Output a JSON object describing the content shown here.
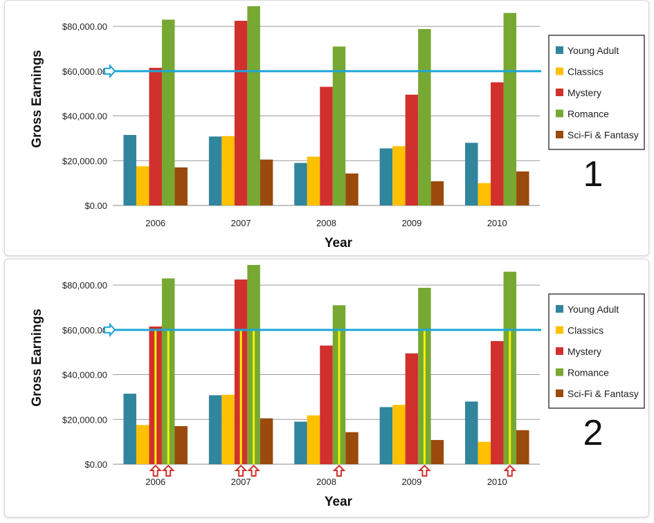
{
  "chart_data": [
    {
      "type": "bar",
      "panel_label": "1",
      "categories": [
        "2006",
        "2007",
        "2008",
        "2009",
        "2010"
      ],
      "series": [
        {
          "name": "Young Adult",
          "color": "#31859c",
          "values": [
            31500,
            30800,
            19000,
            25500,
            28000
          ]
        },
        {
          "name": "Classics",
          "color": "#ffc000",
          "values": [
            17500,
            31000,
            21800,
            26500,
            10000
          ]
        },
        {
          "name": "Mystery",
          "color": "#d0312d",
          "values": [
            61500,
            82500,
            53000,
            49500,
            55000
          ]
        },
        {
          "name": "Romance",
          "color": "#77a832",
          "values": [
            83000,
            89000,
            71000,
            78800,
            86000
          ]
        },
        {
          "name": "Sci-Fi & Fantasy",
          "color": "#9b4a0d",
          "values": [
            17000,
            20500,
            14300,
            10800,
            15200
          ]
        }
      ],
      "xlabel": "Year",
      "ylabel": "Gross Earnings",
      "ylim": [
        0,
        89000
      ],
      "yticks": [
        "$0.00",
        "$20,000.00",
        "$40,000.00",
        "$60,000.00",
        "$80,000.00"
      ],
      "ytick_values": [
        0,
        20000,
        40000,
        60000,
        80000
      ],
      "reference_line": {
        "value": 60000,
        "color": "#1da6d8"
      },
      "legend_position": "right",
      "grid": true
    },
    {
      "type": "bar",
      "panel_label": "2",
      "categories": [
        "2006",
        "2007",
        "2008",
        "2009",
        "2010"
      ],
      "series": [
        {
          "name": "Young Adult",
          "color": "#31859c",
          "values": [
            31500,
            30800,
            19000,
            25500,
            28000
          ]
        },
        {
          "name": "Classics",
          "color": "#ffc000",
          "values": [
            17500,
            31000,
            21800,
            26500,
            10000
          ]
        },
        {
          "name": "Mystery",
          "color": "#d0312d",
          "values": [
            61500,
            82500,
            53000,
            49500,
            55000
          ]
        },
        {
          "name": "Romance",
          "color": "#77a832",
          "values": [
            83000,
            89000,
            71000,
            78800,
            86000
          ]
        },
        {
          "name": "Sci-Fi & Fantasy",
          "color": "#9b4a0d",
          "values": [
            17000,
            20500,
            14300,
            10800,
            15200
          ]
        }
      ],
      "xlabel": "Year",
      "ylabel": "Gross Earnings",
      "ylim": [
        0,
        89000
      ],
      "yticks": [
        "$0.00",
        "$20,000.00",
        "$40,000.00",
        "$60,000.00",
        "$80,000.00"
      ],
      "ytick_values": [
        0,
        20000,
        40000,
        60000,
        80000
      ],
      "reference_line": {
        "value": 60000,
        "color": "#1da6d8"
      },
      "highlighted_bars": [
        {
          "category": "2006",
          "series": "Mystery"
        },
        {
          "category": "2006",
          "series": "Romance"
        },
        {
          "category": "2007",
          "series": "Mystery"
        },
        {
          "category": "2007",
          "series": "Romance"
        },
        {
          "category": "2008",
          "series": "Romance"
        },
        {
          "category": "2009",
          "series": "Romance"
        },
        {
          "category": "2010",
          "series": "Romance"
        }
      ],
      "highlight_color": "#f2f20a",
      "arrow_color": "#d0312d",
      "legend_position": "right",
      "grid": true
    }
  ]
}
